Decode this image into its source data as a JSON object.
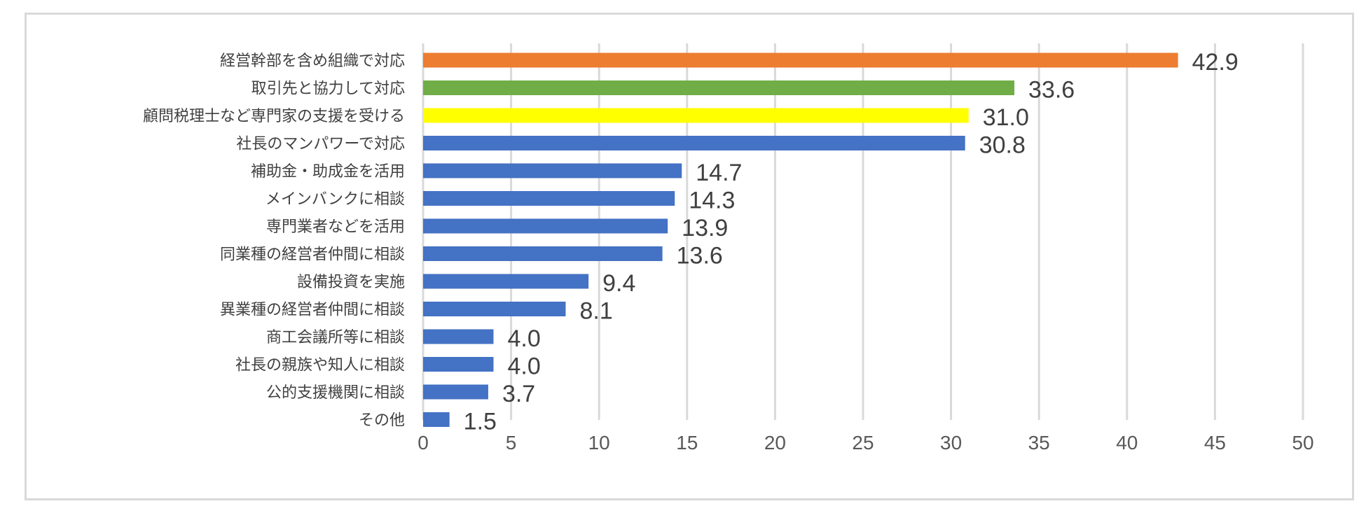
{
  "chart_data": {
    "type": "bar",
    "orientation": "horizontal",
    "title": "",
    "xlabel": "",
    "ylabel": "",
    "xlim": [
      0,
      50
    ],
    "x_ticks": [
      0,
      5,
      10,
      15,
      20,
      25,
      30,
      35,
      40,
      45,
      50
    ],
    "grid": "vertical",
    "categories": [
      "経営幹部を含め組織で対応",
      "取引先と協力して対応",
      "顧問税理士など専門家の支援を受ける",
      "社長のマンパワーで対応",
      "補助金・助成金を活用",
      "メインバンクに相談",
      "専門業者などを活用",
      "同業種の経営者仲間に相談",
      "設備投資を実施",
      "異業種の経営者仲間に相談",
      "商工会議所等に相談",
      "社長の親族や知人に相談",
      "公的支援機関に相談",
      "その他"
    ],
    "values": [
      42.9,
      33.6,
      31.0,
      30.8,
      14.7,
      14.3,
      13.9,
      13.6,
      9.4,
      8.1,
      4.0,
      4.0,
      3.7,
      1.5
    ],
    "value_labels": [
      "42.9",
      "33.6",
      "31.0",
      "30.8",
      "14.7",
      "14.3",
      "13.9",
      "13.6",
      "9.4",
      "8.1",
      "4.0",
      "4.0",
      "3.7",
      "1.5"
    ],
    "bar_colors": [
      "#ed7d31",
      "#70ad47",
      "#ffff00",
      "#4472c4",
      "#4472c4",
      "#4472c4",
      "#4472c4",
      "#4472c4",
      "#4472c4",
      "#4472c4",
      "#4472c4",
      "#4472c4",
      "#4472c4",
      "#4472c4"
    ]
  }
}
